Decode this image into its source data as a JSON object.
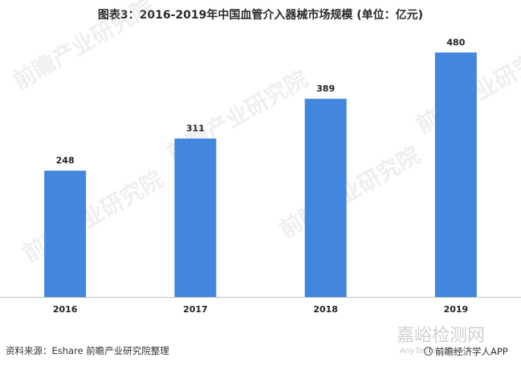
{
  "title": "图表3：2016-2019年中国血管介入器械市场规模 (单位：亿元)",
  "source": "资料来源：Eshare 前瞻产业研究院整理",
  "watermark": {
    "brand": "前瞻产业研究院",
    "site_name": "嘉峪检测网",
    "site_url": "AnyTesting.com",
    "app_label": "前瞻经济学人APP"
  },
  "colors": {
    "bar": "#4286DD",
    "axis": "#bfbfbf",
    "text": "#222222"
  },
  "chart_data": {
    "type": "bar",
    "categories": [
      "2016",
      "2017",
      "2018",
      "2019"
    ],
    "values": [
      248,
      311,
      389,
      480
    ],
    "title": "图表3：2016-2019年中国血管介入器械市场规模 (单位：亿元)",
    "xlabel": "",
    "ylabel": "",
    "ylim": [
      0,
      520
    ],
    "grid": false,
    "legend": "none",
    "data_labels": true
  }
}
